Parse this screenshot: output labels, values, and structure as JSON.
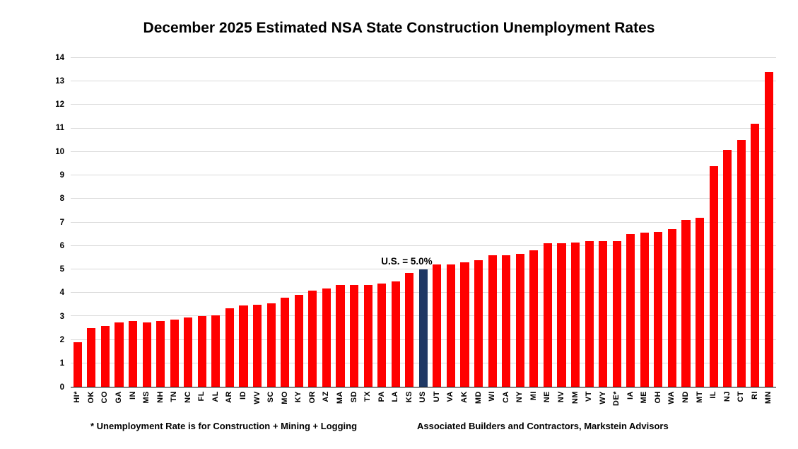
{
  "title": "December 2025 Estimated NSA State Construction Unemployment Rates",
  "footnotes": {
    "definition": "* Unemployment Rate is for Construction + Mining + Logging",
    "source": "Associated Builders and Contractors, Markstein Advisors"
  },
  "colors": {
    "bar": "#FF0000",
    "highlight_bar": "#1F3864",
    "gridline": "#D9D9D9",
    "axis_line": "#000000"
  },
  "chart_data": {
    "type": "bar",
    "title": "December 2025 Estimated NSA State Construction Unemployment Rates",
    "categories": [
      "HI*",
      "OK",
      "CO",
      "GA",
      "IN",
      "MS",
      "NH",
      "TN",
      "NC",
      "FL",
      "AL",
      "AR",
      "ID",
      "WV",
      "SC",
      "MO",
      "KY",
      "OR",
      "AZ",
      "MA",
      "SD",
      "TX",
      "PA",
      "LA",
      "KS",
      "US",
      "UT",
      "VA",
      "AK",
      "MD",
      "WI",
      "CA",
      "NY",
      "MI",
      "NE",
      "NV",
      "NM",
      "VT",
      "WY",
      "DE*",
      "IA",
      "ME",
      "OH",
      "WA",
      "ND",
      "MT",
      "IL",
      "NJ",
      "CT",
      "RI",
      "MN"
    ],
    "values": [
      1.9,
      2.5,
      2.6,
      2.75,
      2.8,
      2.75,
      2.8,
      2.85,
      2.95,
      3.0,
      3.05,
      3.35,
      3.45,
      3.5,
      3.55,
      3.8,
      3.9,
      4.1,
      4.2,
      4.35,
      4.35,
      4.35,
      4.4,
      4.5,
      4.85,
      5.0,
      5.2,
      5.2,
      5.3,
      5.4,
      5.6,
      5.6,
      5.65,
      5.8,
      6.1,
      6.1,
      6.15,
      6.2,
      6.2,
      6.2,
      6.5,
      6.55,
      6.6,
      6.7,
      7.1,
      7.2,
      9.4,
      10.1,
      10.5,
      11.2,
      13.4
    ],
    "highlight_category": "US",
    "highlight_value_label": "U.S. = 5.0%",
    "xlabel": "",
    "ylabel": "",
    "ylim": [
      0,
      14
    ],
    "yticks": [
      0,
      1,
      2,
      3,
      4,
      5,
      6,
      7,
      8,
      9,
      10,
      11,
      12,
      13,
      14
    ],
    "grid": true,
    "legend_position": "none"
  }
}
